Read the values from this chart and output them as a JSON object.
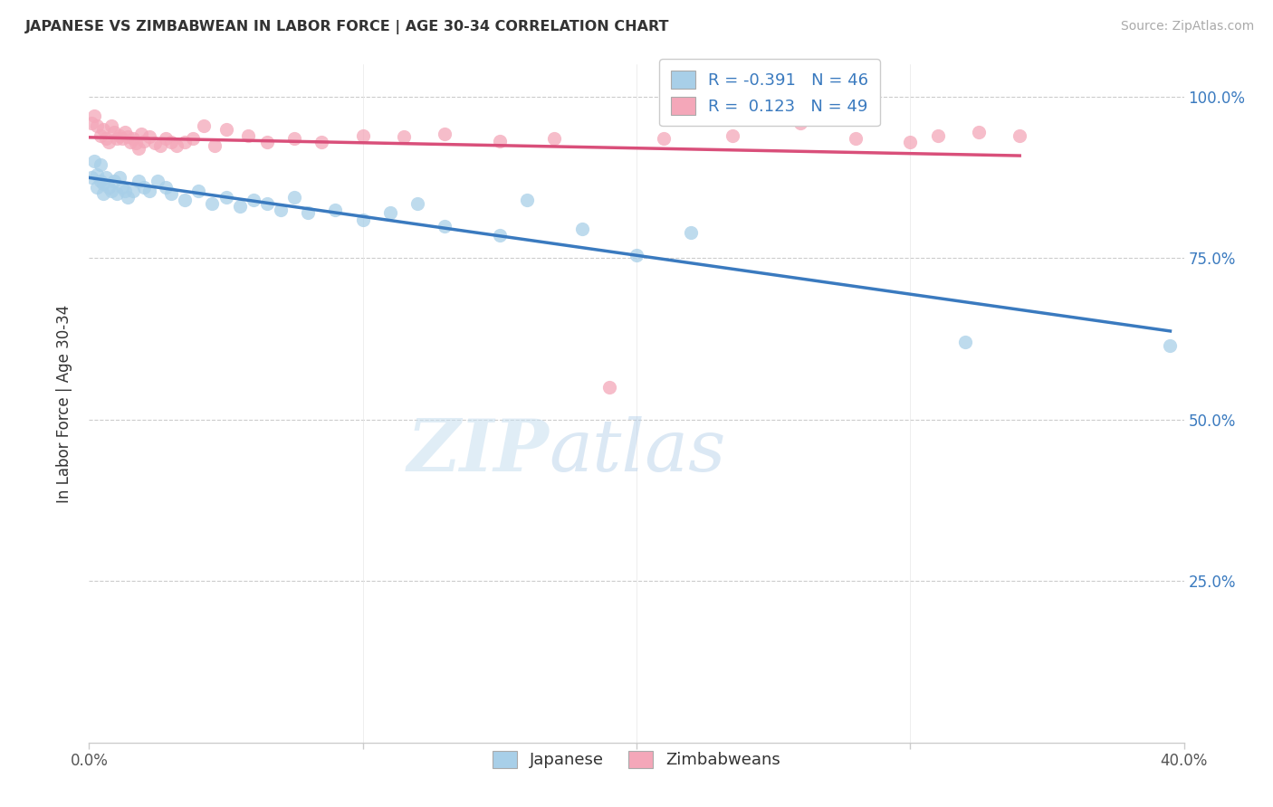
{
  "title": "JAPANESE VS ZIMBABWEAN IN LABOR FORCE | AGE 30-34 CORRELATION CHART",
  "source": "Source: ZipAtlas.com",
  "ylabel": "In Labor Force | Age 30-34",
  "xlim": [
    0.0,
    0.4
  ],
  "ylim": [
    0.0,
    1.05
  ],
  "y_ticks_right": [
    0.25,
    0.5,
    0.75,
    1.0
  ],
  "y_tick_labels_right": [
    "25.0%",
    "50.0%",
    "75.0%",
    "100.0%"
  ],
  "japanese_color": "#a8cfe8",
  "zimbabwean_color": "#f4a7b9",
  "trend_japanese_color": "#3a7abf",
  "trend_zimbabwean_color": "#d94f7a",
  "R_japanese": -0.391,
  "N_japanese": 46,
  "R_zimbabwean": 0.123,
  "N_zimbabwean": 49,
  "japanese_x": [
    0.001,
    0.002,
    0.003,
    0.003,
    0.004,
    0.004,
    0.005,
    0.005,
    0.006,
    0.007,
    0.008,
    0.009,
    0.01,
    0.011,
    0.012,
    0.013,
    0.014,
    0.016,
    0.018,
    0.02,
    0.022,
    0.025,
    0.028,
    0.03,
    0.035,
    0.04,
    0.045,
    0.05,
    0.055,
    0.06,
    0.065,
    0.07,
    0.075,
    0.08,
    0.09,
    0.1,
    0.11,
    0.12,
    0.13,
    0.15,
    0.16,
    0.18,
    0.2,
    0.22,
    0.32,
    0.395
  ],
  "japanese_y": [
    0.875,
    0.9,
    0.88,
    0.86,
    0.895,
    0.87,
    0.865,
    0.85,
    0.875,
    0.86,
    0.855,
    0.87,
    0.85,
    0.875,
    0.86,
    0.855,
    0.845,
    0.855,
    0.87,
    0.86,
    0.855,
    0.87,
    0.86,
    0.85,
    0.84,
    0.855,
    0.835,
    0.845,
    0.83,
    0.84,
    0.835,
    0.825,
    0.845,
    0.82,
    0.825,
    0.81,
    0.82,
    0.835,
    0.8,
    0.785,
    0.84,
    0.795,
    0.755,
    0.79,
    0.62,
    0.615
  ],
  "zimbabwean_x": [
    0.001,
    0.002,
    0.003,
    0.004,
    0.005,
    0.006,
    0.007,
    0.008,
    0.009,
    0.01,
    0.011,
    0.012,
    0.013,
    0.014,
    0.015,
    0.016,
    0.017,
    0.018,
    0.019,
    0.02,
    0.022,
    0.024,
    0.026,
    0.028,
    0.03,
    0.032,
    0.035,
    0.038,
    0.042,
    0.046,
    0.05,
    0.058,
    0.065,
    0.075,
    0.085,
    0.1,
    0.115,
    0.13,
    0.15,
    0.17,
    0.19,
    0.21,
    0.235,
    0.26,
    0.28,
    0.3,
    0.31,
    0.325,
    0.34
  ],
  "zimbabwean_y": [
    0.96,
    0.97,
    0.955,
    0.94,
    0.95,
    0.935,
    0.93,
    0.955,
    0.945,
    0.935,
    0.94,
    0.935,
    0.945,
    0.938,
    0.93,
    0.935,
    0.928,
    0.92,
    0.942,
    0.932,
    0.938,
    0.928,
    0.925,
    0.935,
    0.93,
    0.925,
    0.93,
    0.935,
    0.955,
    0.925,
    0.95,
    0.94,
    0.93,
    0.935,
    0.93,
    0.94,
    0.938,
    0.942,
    0.932,
    0.935,
    0.55,
    0.935,
    0.94,
    0.96,
    0.935,
    0.93,
    0.94,
    0.945,
    0.94
  ],
  "watermark_zip": "ZIP",
  "watermark_atlas": "atlas",
  "background_color": "#ffffff",
  "grid_color": "#cccccc"
}
